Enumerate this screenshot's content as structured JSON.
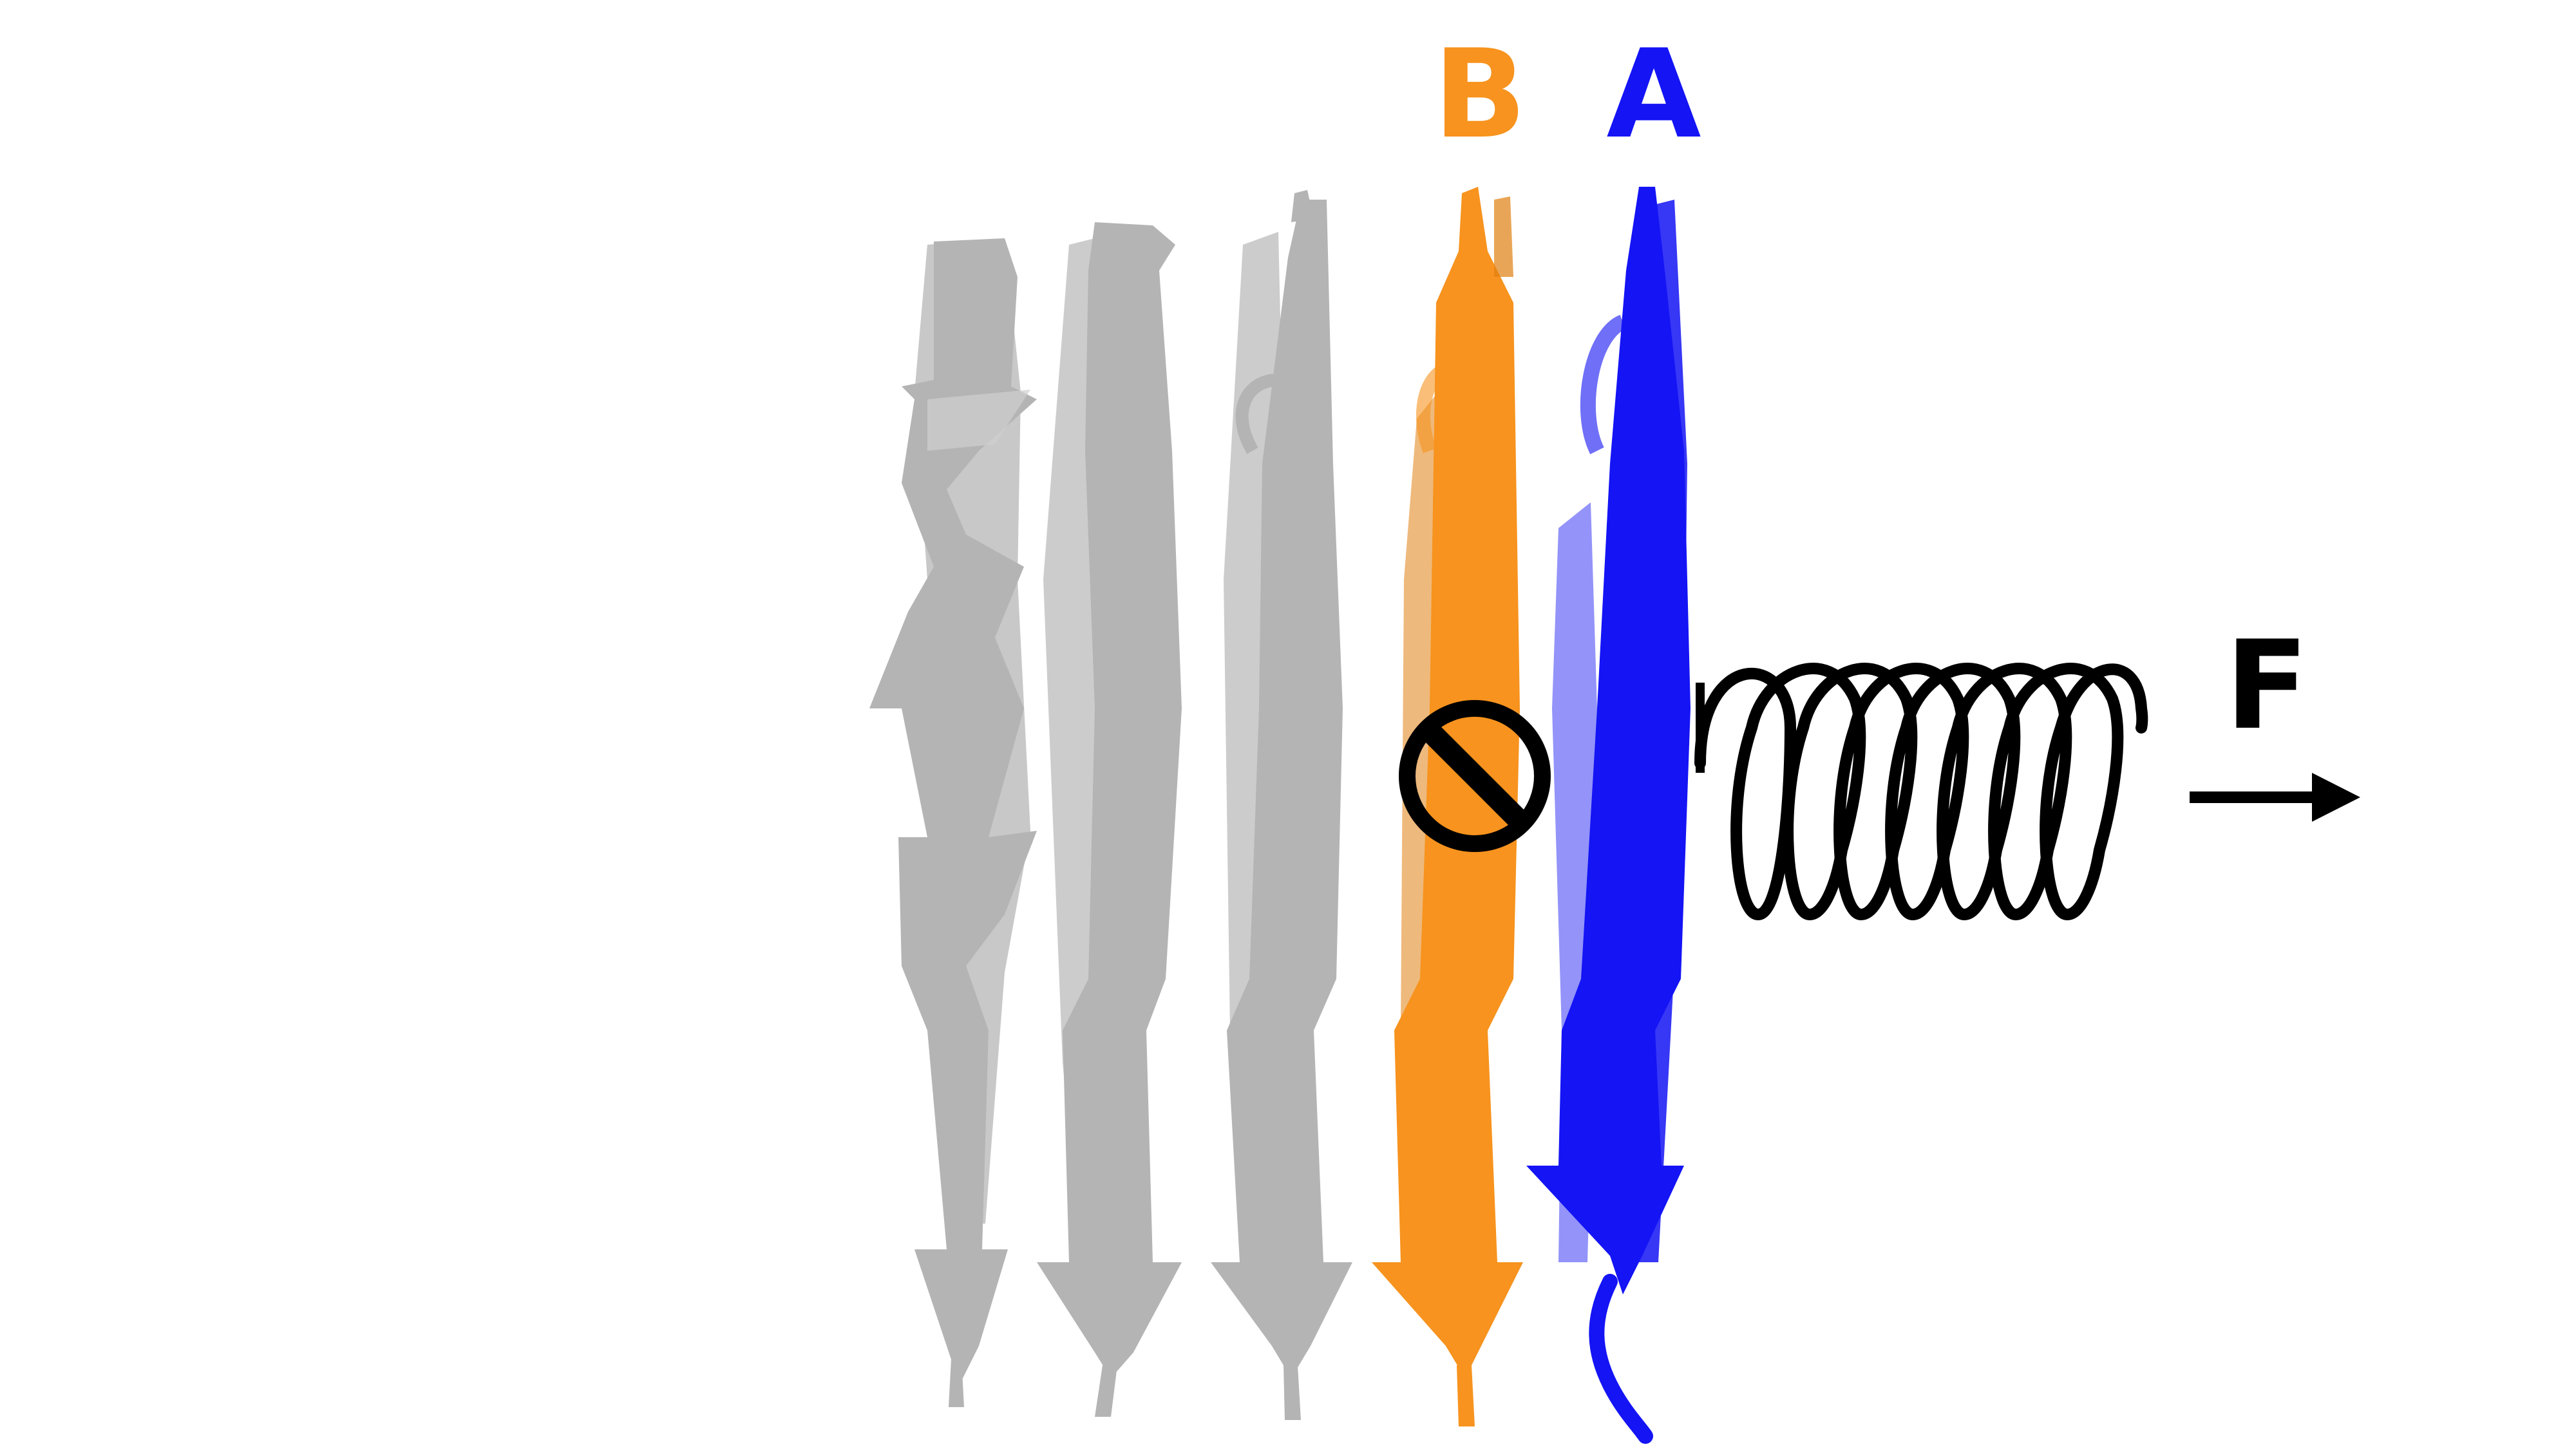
{
  "labels": {
    "strand_b": "B",
    "strand_a": "A",
    "force": "F"
  },
  "colors": {
    "gray_strand": "#b4b4b4",
    "gray_strand_dark": "#9a9a9a",
    "strand_b": "#f7931e",
    "strand_b_dark": "#e07f10",
    "strand_a": "#1414f5",
    "strand_a_light": "#6f6ff7",
    "spring": "#000000",
    "arrow": "#000000",
    "no_symbol": "#000000"
  },
  "icons": {
    "blocked": "no-entry-symbol",
    "spring": "coil-spring",
    "force_arrow": "right-arrow"
  }
}
